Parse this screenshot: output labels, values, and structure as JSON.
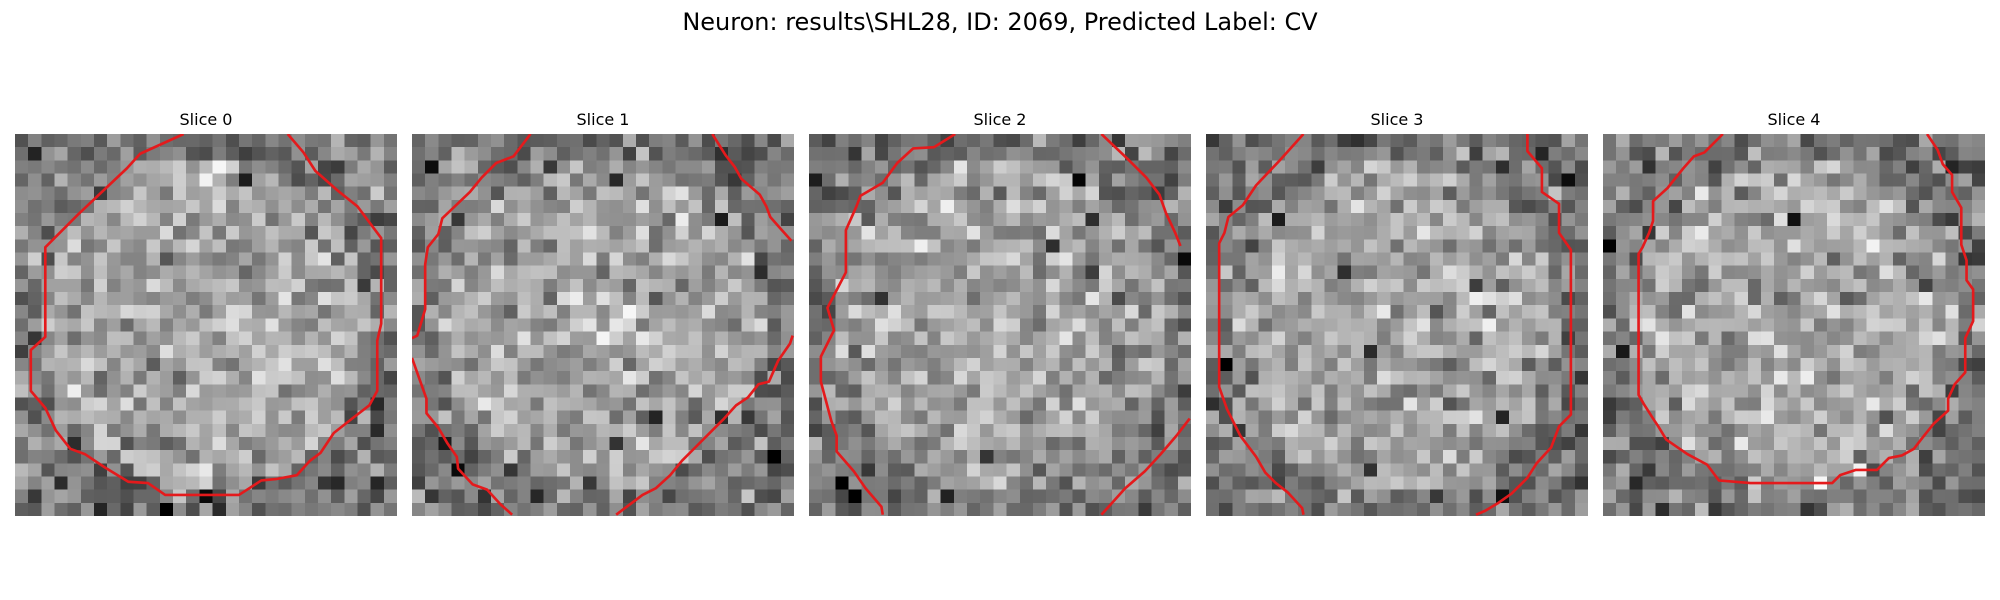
{
  "figure": {
    "title": "Neuron: results\\SHL28, ID: 2069, Predicted Label: CV"
  },
  "slices": [
    {
      "title": "Slice 0",
      "seed": 11,
      "contour_color": "#e41a1c",
      "contours": [
        [
          [
            12.8,
            0
          ],
          [
            9.5,
            1.5
          ],
          [
            8.5,
            2.6
          ],
          [
            4.8,
            6.1
          ],
          [
            2.3,
            8.6
          ],
          [
            2.3,
            15.4
          ],
          [
            1.2,
            16.4
          ],
          [
            1.2,
            19.5
          ],
          [
            2.3,
            20.8
          ],
          [
            3.1,
            22.5
          ],
          [
            4.2,
            23.9
          ],
          [
            5.3,
            24.3
          ],
          [
            6.8,
            25.3
          ],
          [
            8.6,
            26.4
          ],
          [
            10.1,
            26.5
          ],
          [
            11.4,
            27.4
          ],
          [
            17.0,
            27.4
          ],
          [
            18.7,
            26.3
          ],
          [
            19.8,
            26.2
          ],
          [
            21.4,
            25.9
          ],
          [
            22.4,
            24.8
          ],
          [
            23.2,
            24.2
          ],
          [
            24.2,
            22.7
          ],
          [
            25.6,
            21.6
          ],
          [
            26.9,
            20.6
          ],
          [
            27.5,
            19.5
          ],
          [
            27.5,
            15.7
          ],
          [
            27.8,
            14.4
          ],
          [
            27.8,
            7.9
          ],
          [
            26.0,
            5.5
          ],
          [
            24.5,
            4.3
          ],
          [
            22.8,
            2.8
          ],
          [
            21.9,
            1.4
          ],
          [
            20.7,
            0
          ]
        ]
      ]
    },
    {
      "title": "Slice 1",
      "seed": 23,
      "contour_color": "#e41a1c",
      "contours": [
        [
          [
            9.0,
            0
          ],
          [
            7.7,
            1.7
          ],
          [
            6.4,
            2.2
          ],
          [
            5.3,
            3.3
          ],
          [
            4.4,
            4.4
          ],
          [
            2.3,
            6.4
          ],
          [
            2.0,
            7.6
          ],
          [
            1.2,
            8.6
          ],
          [
            1.0,
            9.9
          ],
          [
            1.0,
            13.3
          ],
          [
            0.4,
            15.3
          ],
          [
            0.0,
            15.5
          ]
        ],
        [
          [
            22.8,
            0
          ],
          [
            23.8,
            1.6
          ],
          [
            24.5,
            2.5
          ],
          [
            25.0,
            3.4
          ],
          [
            26.4,
            4.6
          ],
          [
            26.9,
            5.5
          ],
          [
            27.2,
            6.3
          ],
          [
            27.9,
            7.1
          ],
          [
            28.8,
            8.1
          ]
        ],
        [
          [
            0.0,
            17.0
          ],
          [
            0.6,
            18.7
          ],
          [
            1.1,
            20.1
          ],
          [
            1.1,
            21.2
          ],
          [
            2.0,
            22.3
          ],
          [
            2.7,
            23.5
          ],
          [
            3.4,
            24.5
          ],
          [
            3.5,
            25.4
          ],
          [
            4.6,
            26.6
          ],
          [
            5.7,
            27.0
          ],
          [
            6.7,
            28.1
          ],
          [
            7.6,
            28.9
          ]
        ],
        [
          [
            15.5,
            28.9
          ],
          [
            17.5,
            27.4
          ],
          [
            18.5,
            26.9
          ],
          [
            19.6,
            25.9
          ],
          [
            20.5,
            24.8
          ],
          [
            21.5,
            23.8
          ],
          [
            22.5,
            22.8
          ],
          [
            23.6,
            21.7
          ],
          [
            24.6,
            20.6
          ],
          [
            25.5,
            20.0
          ],
          [
            26.3,
            19.0
          ],
          [
            27.1,
            18.8
          ],
          [
            27.8,
            17.2
          ],
          [
            28.7,
            15.9
          ],
          [
            28.9,
            15.3
          ]
        ]
      ]
    },
    {
      "title": "Slice 2",
      "seed": 37,
      "contour_color": "#e41a1c",
      "contours": [
        [
          [
            11.1,
            0
          ],
          [
            9.5,
            1.0
          ],
          [
            7.9,
            1.1
          ],
          [
            6.7,
            2.2
          ],
          [
            5.6,
            3.7
          ],
          [
            3.9,
            4.7
          ],
          [
            3.6,
            5.5
          ],
          [
            2.8,
            7.3
          ],
          [
            2.8,
            10.5
          ],
          [
            1.4,
            13.2
          ],
          [
            1.9,
            14.9
          ],
          [
            0.9,
            16.9
          ],
          [
            0.9,
            18.8
          ],
          [
            1.7,
            21.8
          ],
          [
            2.1,
            22.9
          ],
          [
            2.1,
            24.1
          ],
          [
            3.4,
            25.6
          ],
          [
            4.3,
            26.9
          ],
          [
            5.5,
            28.3
          ],
          [
            5.6,
            28.9
          ]
        ],
        [
          [
            22.2,
            0
          ],
          [
            24.2,
            1.9
          ],
          [
            25.6,
            3.3
          ],
          [
            26.6,
            4.6
          ],
          [
            27.1,
            6.0
          ],
          [
            27.8,
            7.5
          ],
          [
            28.2,
            8.5
          ]
        ],
        [
          [
            22.2,
            28.9
          ],
          [
            24.0,
            26.9
          ],
          [
            25.5,
            25.6
          ],
          [
            26.7,
            24.3
          ],
          [
            27.9,
            22.9
          ],
          [
            28.9,
            21.6
          ]
        ]
      ]
    },
    {
      "title": "Slice 3",
      "seed": 53,
      "contour_color": "#e41a1c",
      "contours": [
        [
          [
            7.4,
            0
          ],
          [
            5.6,
            2.0
          ],
          [
            3.8,
            3.9
          ],
          [
            2.8,
            5.4
          ],
          [
            1.7,
            6.3
          ],
          [
            1.4,
            7.5
          ],
          [
            1.0,
            8.3
          ],
          [
            1.0,
            19.2
          ],
          [
            1.6,
            20.9
          ],
          [
            2.6,
            22.9
          ],
          [
            3.8,
            24.5
          ],
          [
            4.5,
            25.7
          ],
          [
            5.3,
            26.5
          ],
          [
            6.2,
            27.2
          ],
          [
            7.3,
            28.4
          ],
          [
            7.4,
            28.9
          ]
        ],
        [
          [
            24.4,
            0
          ],
          [
            24.4,
            1.3
          ],
          [
            25.5,
            2.6
          ],
          [
            25.5,
            4.4
          ],
          [
            26.8,
            5.3
          ],
          [
            26.8,
            7.5
          ],
          [
            27.7,
            8.8
          ],
          [
            27.7,
            16.4
          ],
          [
            27.7,
            21.3
          ],
          [
            26.8,
            22.2
          ],
          [
            26.2,
            23.8
          ],
          [
            25.1,
            25.0
          ],
          [
            24.4,
            26.1
          ],
          [
            23.2,
            27.3
          ],
          [
            22.2,
            28.0
          ],
          [
            21.2,
            28.6
          ],
          [
            20.5,
            28.9
          ]
        ]
      ]
    },
    {
      "title": "Slice 4",
      "seed": 71,
      "contour_color": "#e41a1c",
      "contours": [
        [
          [
            9.1,
            0
          ],
          [
            7.7,
            1.4
          ],
          [
            6.9,
            1.7
          ],
          [
            6.1,
            2.6
          ],
          [
            4.9,
            4.1
          ],
          [
            3.8,
            5.1
          ],
          [
            3.8,
            6.6
          ],
          [
            3.5,
            7.5
          ],
          [
            3.0,
            8.6
          ],
          [
            2.7,
            9.1
          ],
          [
            2.7,
            19.8
          ],
          [
            3.1,
            20.5
          ],
          [
            3.8,
            21.6
          ],
          [
            4.2,
            22.2
          ],
          [
            4.8,
            23.2
          ],
          [
            6.4,
            24.3
          ],
          [
            7.9,
            25.1
          ],
          [
            8.8,
            26.3
          ],
          [
            11.2,
            26.5
          ],
          [
            17.4,
            26.5
          ],
          [
            18.0,
            25.9
          ],
          [
            19.2,
            25.5
          ],
          [
            20.8,
            25.5
          ],
          [
            21.7,
            24.6
          ],
          [
            22.7,
            24.4
          ],
          [
            23.6,
            23.9
          ],
          [
            24.3,
            23.0
          ],
          [
            25.1,
            22.0
          ],
          [
            26.2,
            21.0
          ],
          [
            26.2,
            20.1
          ],
          [
            26.7,
            19.0
          ],
          [
            27.5,
            18.1
          ],
          [
            27.5,
            15.5
          ],
          [
            28.1,
            14.2
          ],
          [
            28.1,
            11.8
          ],
          [
            27.6,
            11.1
          ],
          [
            27.6,
            9.6
          ],
          [
            27.2,
            8.4
          ],
          [
            27.2,
            5.6
          ],
          [
            26.5,
            4.4
          ],
          [
            26.5,
            3.1
          ],
          [
            25.8,
            2.3
          ],
          [
            25.4,
            1.2
          ],
          [
            24.6,
            0
          ]
        ]
      ]
    }
  ]
}
